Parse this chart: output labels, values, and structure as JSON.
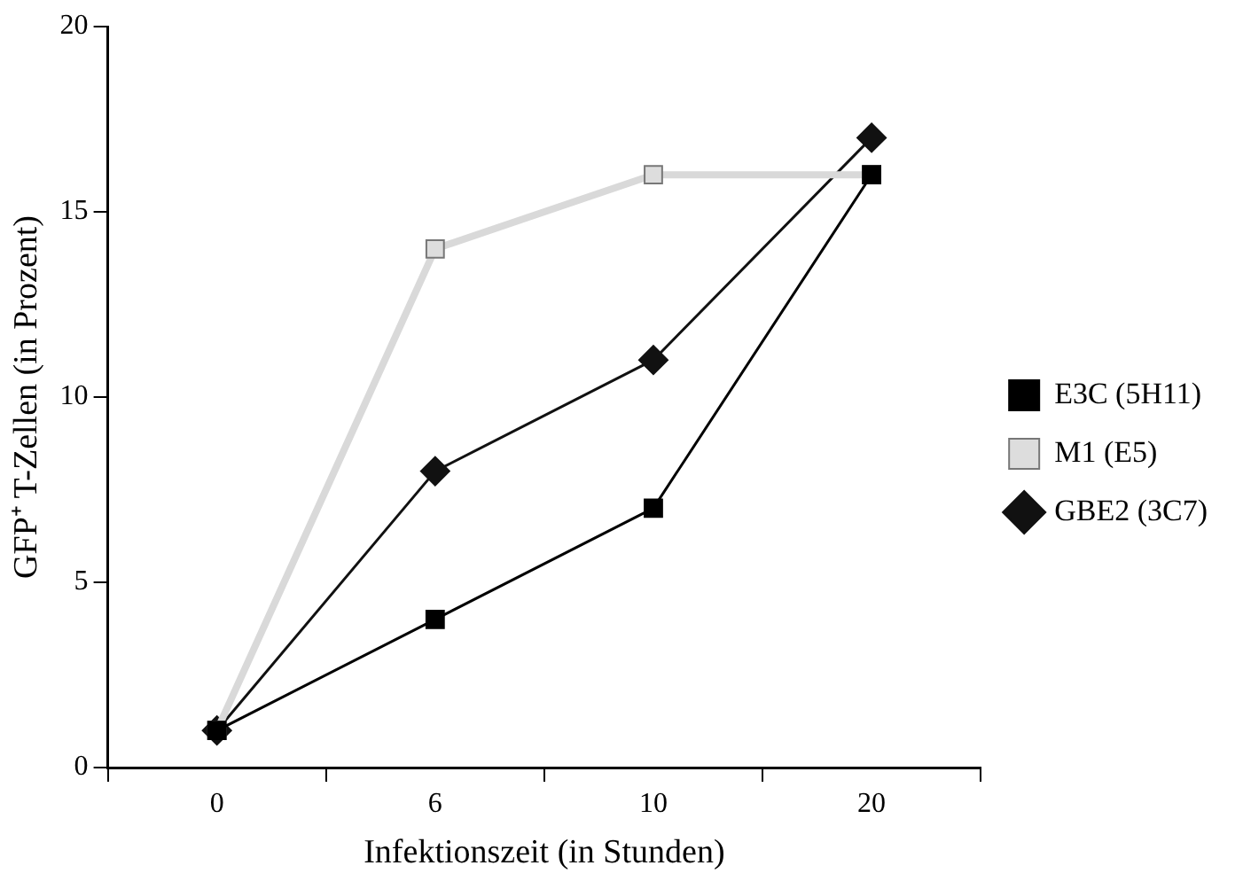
{
  "chart_data": {
    "type": "line",
    "xlabel": "Infektionszeit (in Stunden)",
    "ylabel": "GFP⁺ T-Zellen (in Prozent)",
    "categories": [
      "0",
      "6",
      "10",
      "20"
    ],
    "ylim": [
      0,
      20
    ],
    "yticks": [
      0,
      5,
      10,
      15,
      20
    ],
    "grid": false,
    "legend": "right",
    "line_style": "solid",
    "series": [
      {
        "name": "E3C (5H11)",
        "color": "#000000",
        "marker": "square",
        "values": [
          1,
          4,
          7,
          16
        ]
      },
      {
        "name": "M1 (E5)",
        "color": "#d9d9d9",
        "marker": "square",
        "values": [
          1,
          14,
          16,
          16
        ]
      },
      {
        "name": "GBE2 (3C7)",
        "color": "#111111",
        "marker": "diamond",
        "values": [
          1,
          8,
          11,
          17
        ]
      }
    ]
  }
}
